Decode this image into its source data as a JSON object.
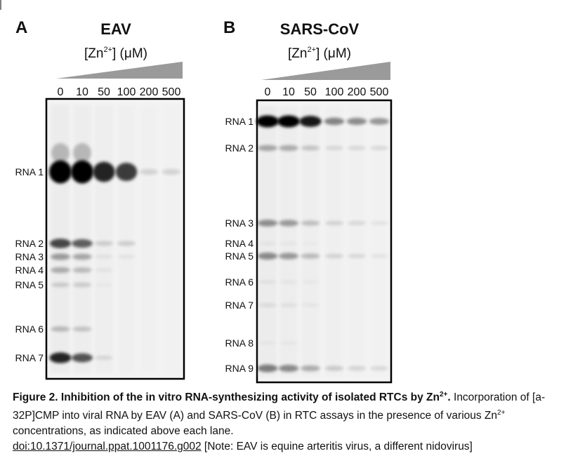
{
  "panels": [
    {
      "letter": "A",
      "title": "EAV",
      "concentration_label": {
        "prefix": "[Zn",
        "superscript": "2+",
        "suffix": "] (μM)"
      },
      "lanes": [
        "0",
        "10",
        "50",
        "100",
        "200",
        "500"
      ],
      "bands": [
        "RNA 1",
        "RNA 2",
        "RNA 3",
        "RNA 4",
        "RNA 5",
        "RNA 6",
        "RNA 7"
      ]
    },
    {
      "letter": "B",
      "title": "SARS-CoV",
      "concentration_label": {
        "prefix": "[Zn",
        "superscript": "2+",
        "suffix": "] (μM)"
      },
      "lanes": [
        "0",
        "10",
        "50",
        "100",
        "200",
        "500"
      ],
      "bands": [
        "RNA 1",
        "RNA 2",
        "RNA 3",
        "RNA 4",
        "RNA 5",
        "RNA 6",
        "RNA 7",
        "RNA 8",
        "RNA 9"
      ]
    }
  ],
  "caption": {
    "bold": "Figure 2. Inhibition of the in vitro RNA-synthesizing activity of isolated RTCs by Zn",
    "bold_superscript": "2+",
    "bold_end": ".",
    "text": " Incorporation of [a-32P]CMP into viral RNA by EAV (A) and SARS-CoV (B) in RTC assays in the presence of various Zn",
    "superscript": "2+",
    "text_end": " concentrations, as indicated above each lane.",
    "link": "doi:10.1371/journal.ppat.1001176.g002",
    "note": " [Note: EAV is equine arteritis virus, a different nidovirus]"
  }
}
